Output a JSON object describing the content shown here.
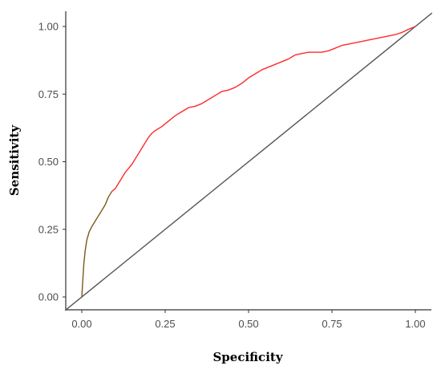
{
  "chart_data": {
    "type": "line",
    "title": "",
    "xlabel": "Specificity",
    "ylabel": "Sensitivity",
    "xlim": [
      0,
      1
    ],
    "ylim": [
      0,
      1
    ],
    "x_ticks": [
      {
        "value": 0.0,
        "label": "0.00"
      },
      {
        "value": 0.25,
        "label": "0.25"
      },
      {
        "value": 0.5,
        "label": "0.50"
      },
      {
        "value": 0.75,
        "label": "0.75"
      },
      {
        "value": 1.0,
        "label": "1.00"
      }
    ],
    "y_ticks": [
      {
        "value": 0.0,
        "label": "0.00"
      },
      {
        "value": 0.25,
        "label": "0.25"
      },
      {
        "value": 0.5,
        "label": "0.50"
      },
      {
        "value": 0.75,
        "label": "0.75"
      },
      {
        "value": 1.0,
        "label": "1.00"
      }
    ],
    "grid": false,
    "series": [
      {
        "color": "#ff2a2a",
        "low_range_color": "#7a5a1a",
        "x": [
          0.0,
          0.003,
          0.006,
          0.01,
          0.015,
          0.022,
          0.03,
          0.04,
          0.05,
          0.06,
          0.07,
          0.08,
          0.09,
          0.1,
          0.11,
          0.12,
          0.13,
          0.14,
          0.15,
          0.16,
          0.17,
          0.18,
          0.19,
          0.2,
          0.21,
          0.22,
          0.24,
          0.26,
          0.28,
          0.3,
          0.32,
          0.34,
          0.36,
          0.38,
          0.4,
          0.42,
          0.44,
          0.46,
          0.48,
          0.5,
          0.52,
          0.54,
          0.56,
          0.58,
          0.6,
          0.62,
          0.64,
          0.66,
          0.68,
          0.7,
          0.72,
          0.74,
          0.76,
          0.78,
          0.8,
          0.82,
          0.84,
          0.86,
          0.88,
          0.9,
          0.92,
          0.94,
          0.96,
          0.98,
          1.0
        ],
        "y": [
          0.0,
          0.06,
          0.12,
          0.17,
          0.21,
          0.24,
          0.26,
          0.28,
          0.3,
          0.32,
          0.34,
          0.37,
          0.39,
          0.4,
          0.42,
          0.44,
          0.46,
          0.475,
          0.49,
          0.51,
          0.53,
          0.55,
          0.57,
          0.59,
          0.605,
          0.615,
          0.63,
          0.65,
          0.67,
          0.685,
          0.7,
          0.705,
          0.715,
          0.73,
          0.745,
          0.76,
          0.765,
          0.775,
          0.79,
          0.81,
          0.825,
          0.84,
          0.85,
          0.86,
          0.87,
          0.88,
          0.895,
          0.9,
          0.905,
          0.905,
          0.905,
          0.91,
          0.92,
          0.93,
          0.935,
          0.94,
          0.945,
          0.95,
          0.955,
          0.96,
          0.965,
          0.97,
          0.978,
          0.99,
          1.0
        ]
      }
    ],
    "reference_line": {
      "x": [
        0,
        1
      ],
      "y": [
        0,
        1
      ],
      "color": "#555555"
    }
  }
}
